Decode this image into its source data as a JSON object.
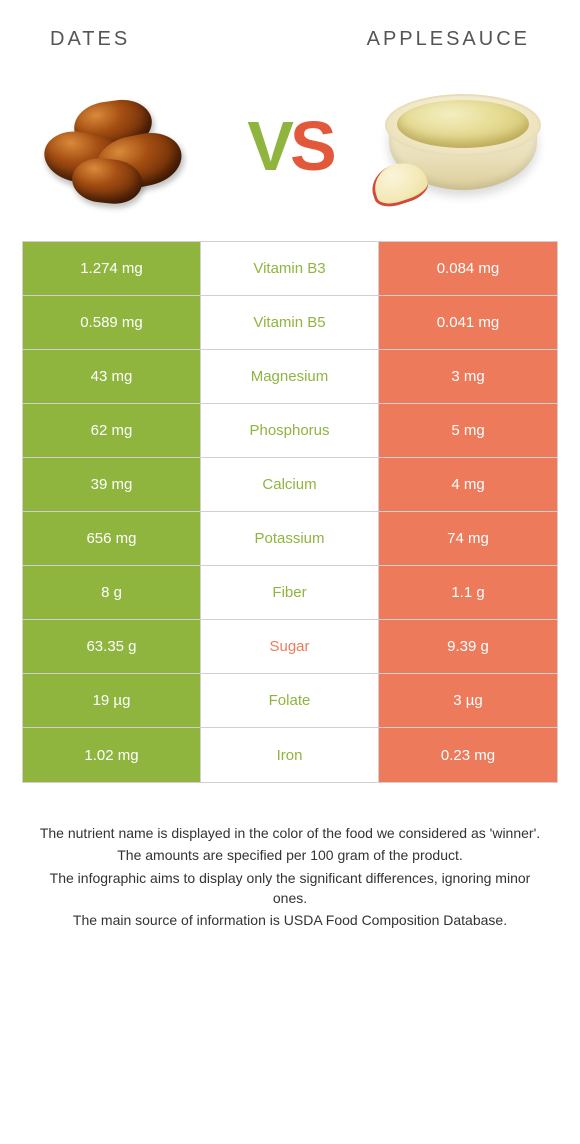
{
  "colors": {
    "left_bg": "#8fb53f",
    "right_bg": "#ed7b5b",
    "left_text": "#8fb53f",
    "right_text": "#ed7b5b",
    "vs_v": "#8fb53f",
    "vs_s": "#e2583a",
    "border": "#d0d0d0"
  },
  "header": {
    "left": "Dates",
    "right": "Applesauce"
  },
  "vs": {
    "v": "V",
    "s": "S"
  },
  "table": {
    "rows": [
      {
        "left": "1.274 mg",
        "label": "Vitamin B3",
        "right": "0.084 mg",
        "winner": "left"
      },
      {
        "left": "0.589 mg",
        "label": "Vitamin B5",
        "right": "0.041 mg",
        "winner": "left"
      },
      {
        "left": "43 mg",
        "label": "Magnesium",
        "right": "3 mg",
        "winner": "left"
      },
      {
        "left": "62 mg",
        "label": "Phosphorus",
        "right": "5 mg",
        "winner": "left"
      },
      {
        "left": "39 mg",
        "label": "Calcium",
        "right": "4 mg",
        "winner": "left"
      },
      {
        "left": "656 mg",
        "label": "Potassium",
        "right": "74 mg",
        "winner": "left"
      },
      {
        "left": "8 g",
        "label": "Fiber",
        "right": "1.1 g",
        "winner": "left"
      },
      {
        "left": "63.35 g",
        "label": "Sugar",
        "right": "9.39 g",
        "winner": "right"
      },
      {
        "left": "19 µg",
        "label": "Folate",
        "right": "3 µg",
        "winner": "left"
      },
      {
        "left": "1.02 mg",
        "label": "Iron",
        "right": "0.23 mg",
        "winner": "left"
      }
    ]
  },
  "footer": {
    "l1": "The nutrient name is displayed in the color of the food we considered as 'winner'.",
    "l2": "The amounts are specified per 100 gram of the product.",
    "l3": "The infographic aims to display only the significant differences, ignoring minor ones.",
    "l4": "The main source of information is USDA Food Composition Database."
  }
}
